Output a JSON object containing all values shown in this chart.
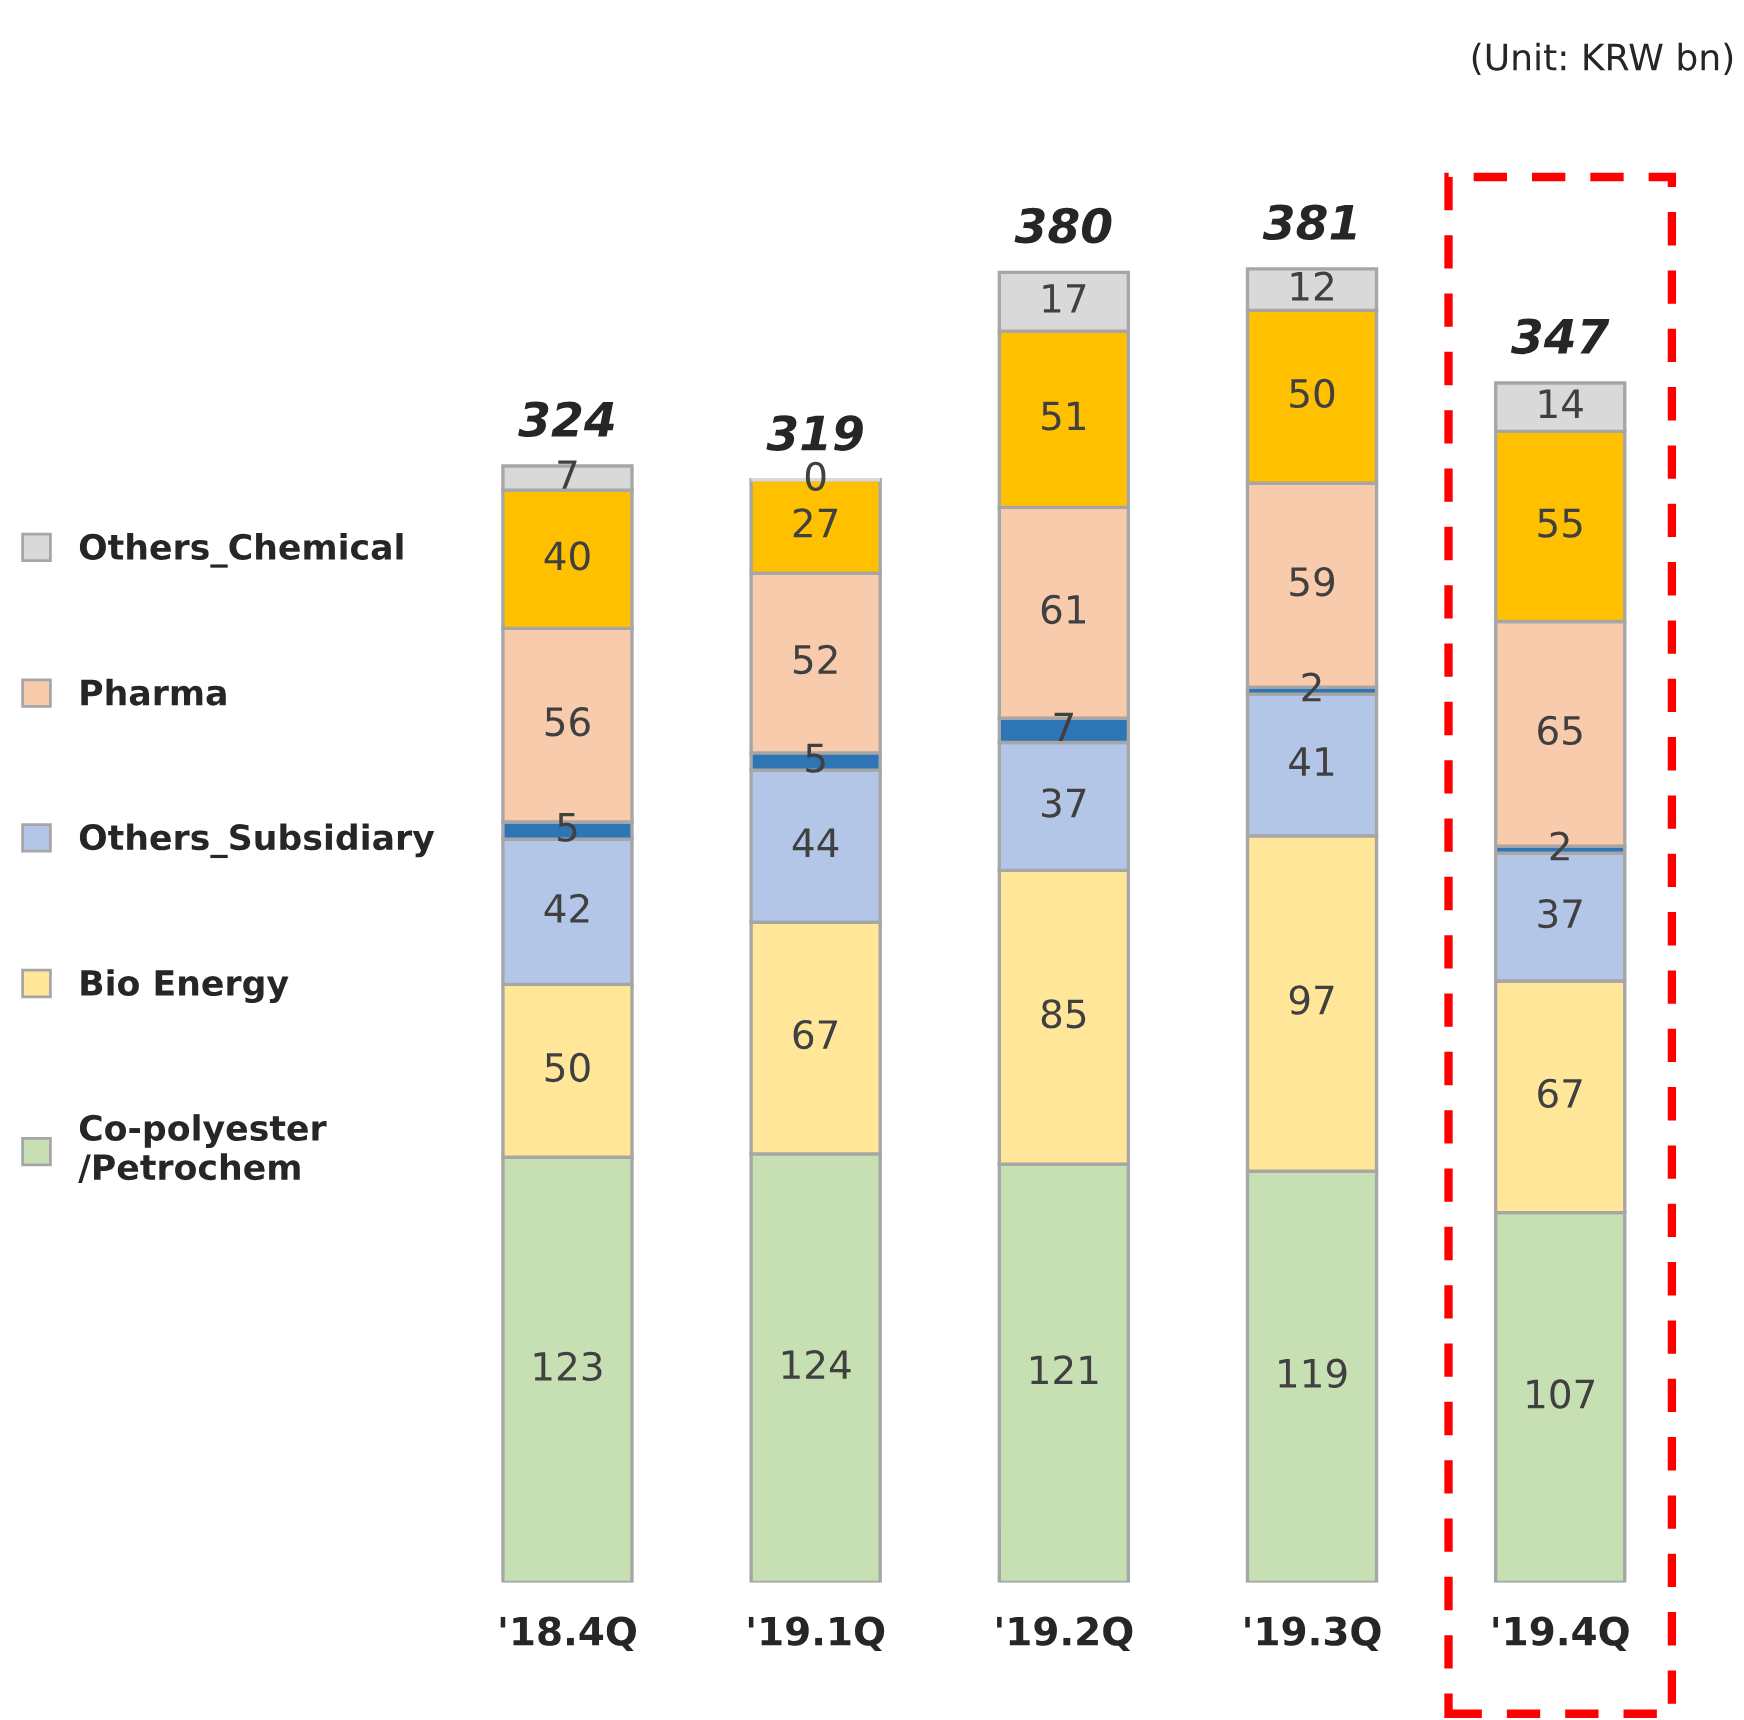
{
  "chart_data": {
    "type": "bar",
    "stacked": true,
    "categories": [
      "'18.4Q",
      "'19.1Q",
      "'19.2Q",
      "'19.3Q",
      "'19.4Q"
    ],
    "series": [
      {
        "name": "Co-polyester\n/Petrochem",
        "color": "#c6e0b4",
        "values": [
          123,
          124,
          121,
          119,
          107
        ]
      },
      {
        "name": "Bio Energy",
        "color": "#ffe699",
        "values": [
          50,
          67,
          85,
          97,
          67
        ]
      },
      {
        "name": "Others_Subsidiary",
        "color": "#b4c6e7",
        "values": [
          42,
          44,
          37,
          41,
          37
        ]
      },
      {
        "color": "#2e75b6",
        "values": [
          5,
          5,
          7,
          2,
          2
        ]
      },
      {
        "name": "Pharma",
        "color": "#f8cbad",
        "values": [
          56,
          52,
          61,
          59,
          65
        ]
      },
      {
        "color": "#ffc000",
        "values": [
          40,
          27,
          51,
          50,
          55
        ]
      },
      {
        "name": "Others_Chemical",
        "color": "#d9d9d9",
        "values": [
          7,
          0,
          17,
          12,
          14
        ]
      }
    ],
    "totals": [
      "324",
      "319",
      "380",
      "381",
      "347"
    ],
    "data_labels": true,
    "tick_labels": "x",
    "grid": false,
    "legend": "left",
    "annotations": [
      "(Unit: KRW bn)"
    ]
  }
}
